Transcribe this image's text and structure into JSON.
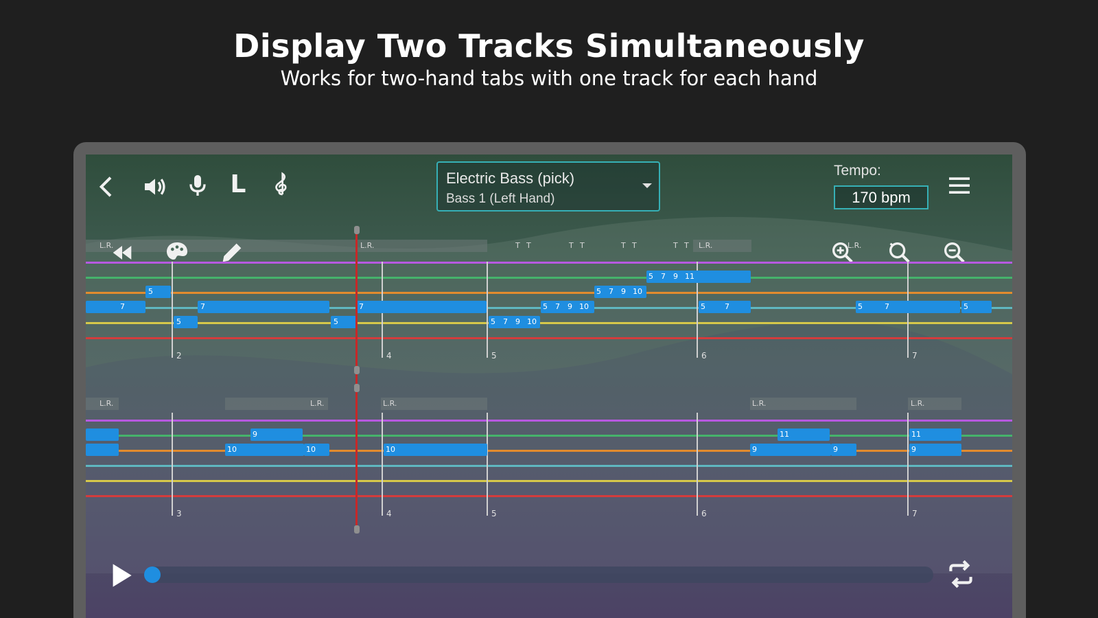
{
  "promo": {
    "title": "Display Two Tracks Simultaneously",
    "subtitle": "Works for two-hand tabs with one track for each hand"
  },
  "toolbar": {
    "icons": [
      "back-arrow-icon",
      "speaker-icon",
      "microphone-icon",
      "l-hand-icon",
      "treble-clef-icon",
      "menu-icon"
    ],
    "hand_label": "L",
    "track_select": {
      "instrument": "Electric Bass (pick)",
      "track": "Bass 1 (Left Hand)"
    },
    "tempo": {
      "label": "Tempo:",
      "value": "170 bpm"
    }
  },
  "tools": {
    "icons": [
      "rewind-icon",
      "palette-icon",
      "pencil-icon",
      "zoom-in-icon",
      "zoom-reset-icon",
      "zoom-out-icon"
    ]
  },
  "top_staff": {
    "lr_label": "L.R.",
    "t_label": "T",
    "bar_numbers": [
      "2",
      "4",
      "5",
      "6",
      "7"
    ],
    "notes": [
      {
        "frets": [
          "5"
        ]
      },
      {
        "frets": [
          "7"
        ]
      },
      {
        "frets": [
          "7"
        ]
      },
      {
        "frets": [
          "5"
        ]
      },
      {
        "frets": [
          "7"
        ]
      },
      {
        "frets": [
          "5"
        ]
      },
      {
        "frets": [
          "5",
          "7",
          "9",
          "10"
        ]
      },
      {
        "frets": [
          "5",
          "7",
          "9",
          "10"
        ]
      },
      {
        "frets": [
          "5",
          "7",
          "9",
          "10"
        ]
      },
      {
        "frets": [
          "5",
          "7",
          "9",
          "11"
        ]
      },
      {
        "frets": [
          "5",
          "7"
        ]
      },
      {
        "frets": [
          "5",
          "7"
        ]
      },
      {
        "frets": [
          "5"
        ]
      }
    ]
  },
  "bottom_staff": {
    "lr_label": "L.R.",
    "bar_numbers": [
      "3",
      "4",
      "5",
      "6",
      "7"
    ],
    "notes": [
      {
        "frets": [
          "9"
        ]
      },
      {
        "frets": [
          "10"
        ]
      },
      {
        "frets": [
          "10"
        ]
      },
      {
        "frets": [
          "10"
        ]
      },
      {
        "frets": [
          "11"
        ]
      },
      {
        "frets": [
          "9"
        ]
      },
      {
        "frets": [
          "9"
        ]
      },
      {
        "frets": [
          "11"
        ]
      },
      {
        "frets": [
          "9"
        ]
      }
    ]
  },
  "playback": {
    "progress_fraction": 0.02,
    "controls": [
      "play-icon",
      "repeat-icon"
    ]
  },
  "colors": {
    "background": "#1f1f1f",
    "accent": "#36b0b6",
    "note": "#1f8ee0",
    "string_e_high": "#b659e0",
    "string_b": "#45b36b",
    "string_g": "#e28b2e",
    "string_d": "#5fb7c0",
    "string_a": "#d6c84a",
    "string_e_low": "#d33c3c",
    "playhead": "#c62828"
  }
}
